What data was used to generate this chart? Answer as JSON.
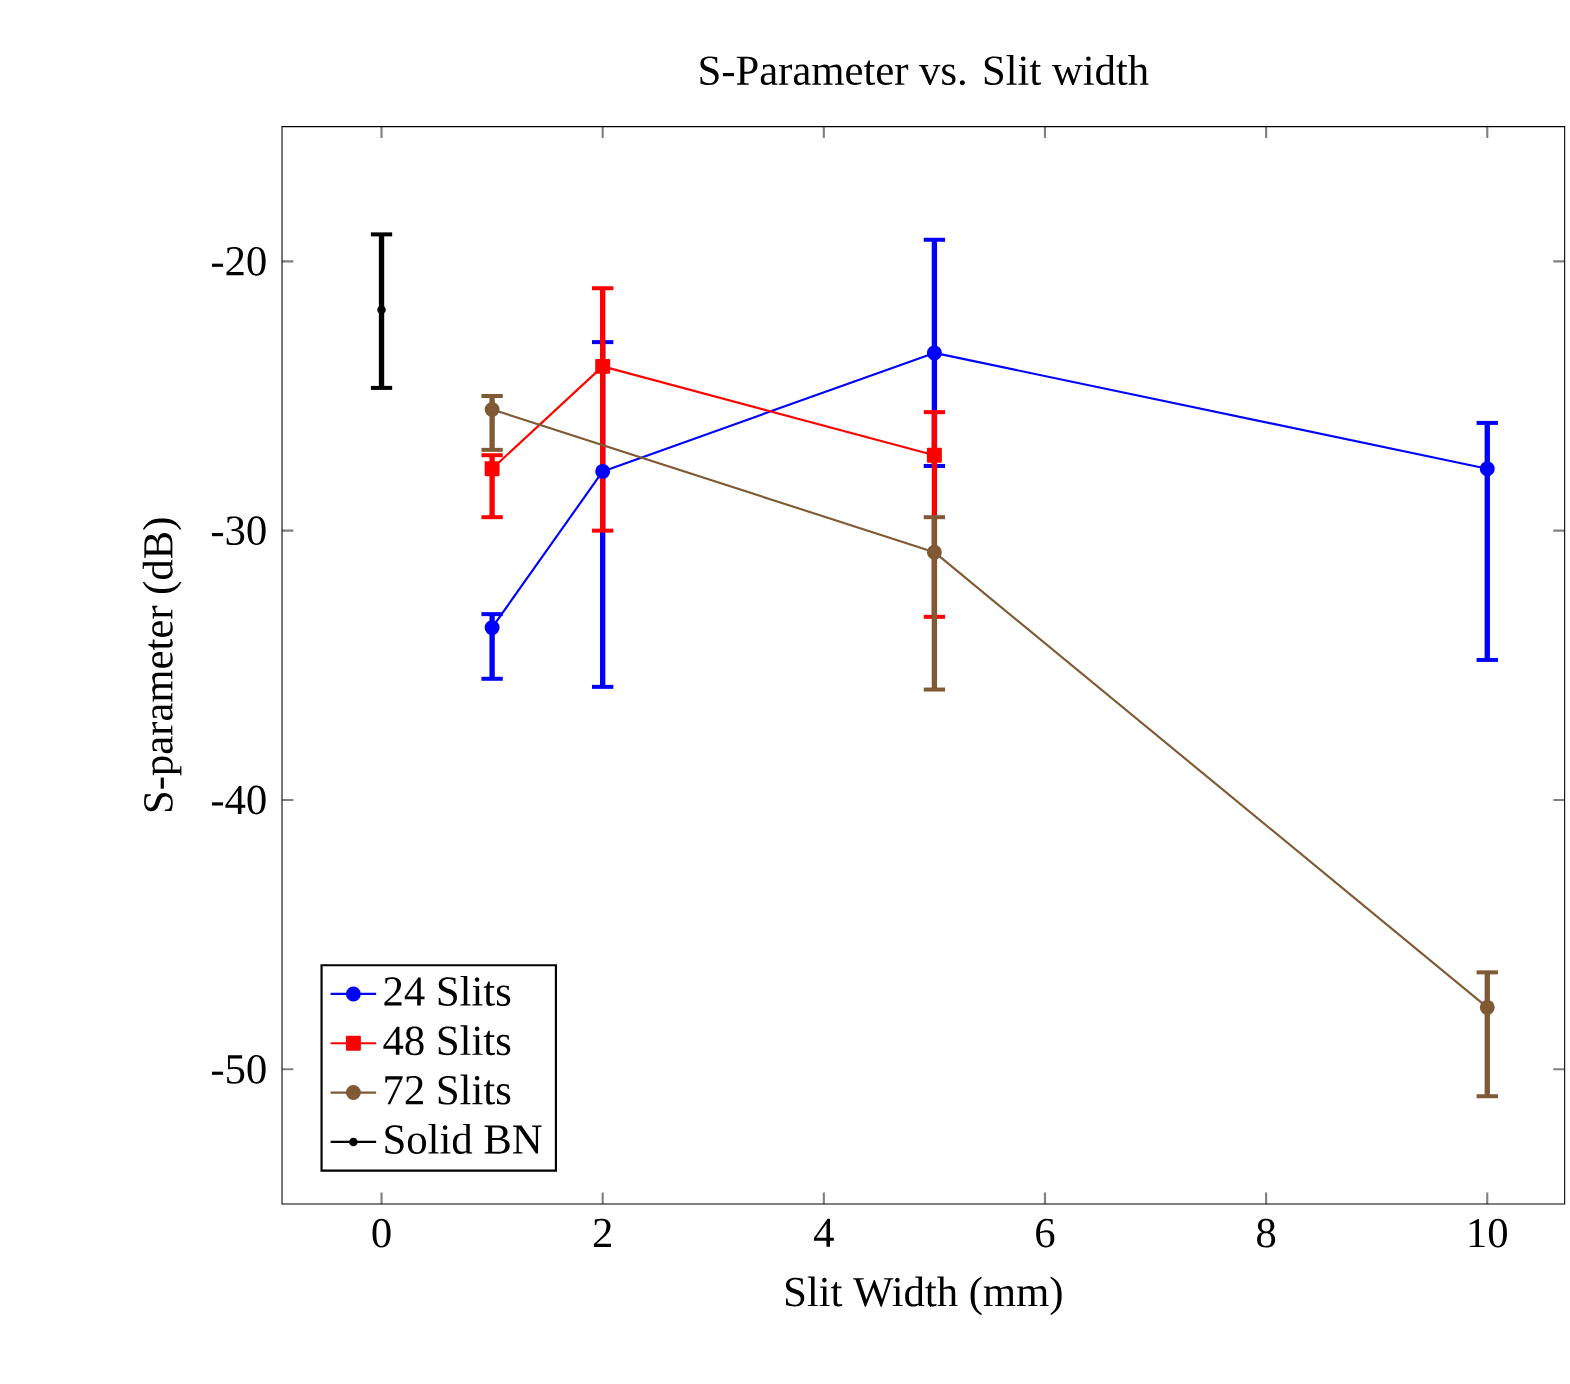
{
  "chart_data": {
    "type": "line",
    "title": "S-Parameter vs. Slit width",
    "xlabel": "Slit Width (mm)",
    "ylabel": "S-parameter (dB)",
    "xlim": [
      -0.9,
      10.7
    ],
    "ylim": [
      -55,
      -15
    ],
    "xticks": [
      0,
      2,
      4,
      6,
      8,
      10
    ],
    "yticks": [
      -50,
      -40,
      -30,
      -20
    ],
    "legend": "bottom left",
    "grid": false,
    "line_style": "solid",
    "series": [
      {
        "name": "24 Slits",
        "color": "#0000ff",
        "marker": "circle",
        "x": [
          1,
          2,
          5,
          10
        ],
        "values": [
          -33.6,
          -27.8,
          -23.4,
          -27.7
        ],
        "errors": [
          [
            -35.5,
            -33.1
          ],
          [
            -35.8,
            -23.0
          ],
          [
            -27.6,
            -19.2
          ],
          [
            -34.8,
            -26.0
          ]
        ]
      },
      {
        "name": "48 Slits",
        "color": "#ff0000",
        "marker": "square",
        "x": [
          1,
          2,
          5
        ],
        "values": [
          -27.7,
          -23.9,
          -27.2
        ],
        "errors": [
          [
            -29.5,
            -27.2
          ],
          [
            -30.0,
            -21.0
          ],
          [
            -33.2,
            -25.6
          ]
        ]
      },
      {
        "name": "72 Slits",
        "color": "#7f5a35",
        "marker": "circle",
        "x": [
          1,
          5,
          10
        ],
        "values": [
          -25.5,
          -30.8,
          -47.7
        ],
        "errors": [
          [
            -27.0,
            -25.0
          ],
          [
            -35.9,
            -29.5
          ],
          [
            -51.0,
            -46.4
          ]
        ]
      },
      {
        "name": "Solid BN",
        "color": "#000000",
        "marker": "dot",
        "x": [
          0
        ],
        "values": [
          -21.8
        ],
        "errors": [
          [
            -24.7,
            -19.0
          ]
        ]
      }
    ]
  }
}
